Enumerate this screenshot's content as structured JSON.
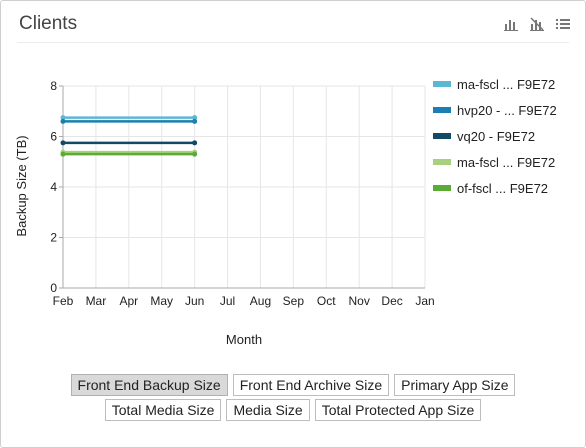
{
  "panel": {
    "title": "Clients",
    "icons": [
      "bar-chart-icon",
      "bar-chart-off-icon",
      "list-icon"
    ]
  },
  "chart_data": {
    "type": "line",
    "xlabel": "Month",
    "ylabel": "Backup Size (TB)",
    "ylim": [
      0,
      8
    ],
    "yticks": [
      "0",
      "2",
      "4",
      "6",
      "8"
    ],
    "categories": [
      "Feb",
      "Mar",
      "Apr",
      "May",
      "Jun",
      "Jul",
      "Aug",
      "Sep",
      "Oct",
      "Nov",
      "Dec",
      "Jan"
    ],
    "grid": true,
    "legend_position": "right",
    "series": [
      {
        "name": "ma-fscl ... F9E72",
        "color": "#5bb8d3",
        "values": [
          6.75,
          null,
          null,
          null,
          6.75,
          null,
          null,
          null,
          null,
          null,
          null,
          null
        ]
      },
      {
        "name": "hvp20 - ... F9E72",
        "color": "#1c7fb3",
        "values": [
          6.6,
          null,
          null,
          null,
          6.6,
          null,
          null,
          null,
          null,
          null,
          null,
          null
        ]
      },
      {
        "name": "vq20 - F9E72",
        "color": "#124a66",
        "values": [
          5.75,
          null,
          null,
          null,
          5.75,
          null,
          null,
          null,
          null,
          null,
          null,
          null
        ]
      },
      {
        "name": "ma-fscl ... F9E72",
        "color": "#a8d07e",
        "values": [
          5.38,
          null,
          null,
          null,
          5.38,
          null,
          null,
          null,
          null,
          null,
          null,
          null
        ]
      },
      {
        "name": "of-fscl ... F9E72",
        "color": "#5aac35",
        "values": [
          5.3,
          null,
          null,
          null,
          5.3,
          null,
          null,
          null,
          null,
          null,
          null,
          null
        ]
      }
    ]
  },
  "tabs": [
    {
      "label": "Front End Backup Size",
      "active": true
    },
    {
      "label": "Front End Archive Size",
      "active": false
    },
    {
      "label": "Primary App Size",
      "active": false
    },
    {
      "label": "Total Media Size",
      "active": false
    },
    {
      "label": "Media Size",
      "active": false
    },
    {
      "label": "Total Protected App Size",
      "active": false
    }
  ]
}
